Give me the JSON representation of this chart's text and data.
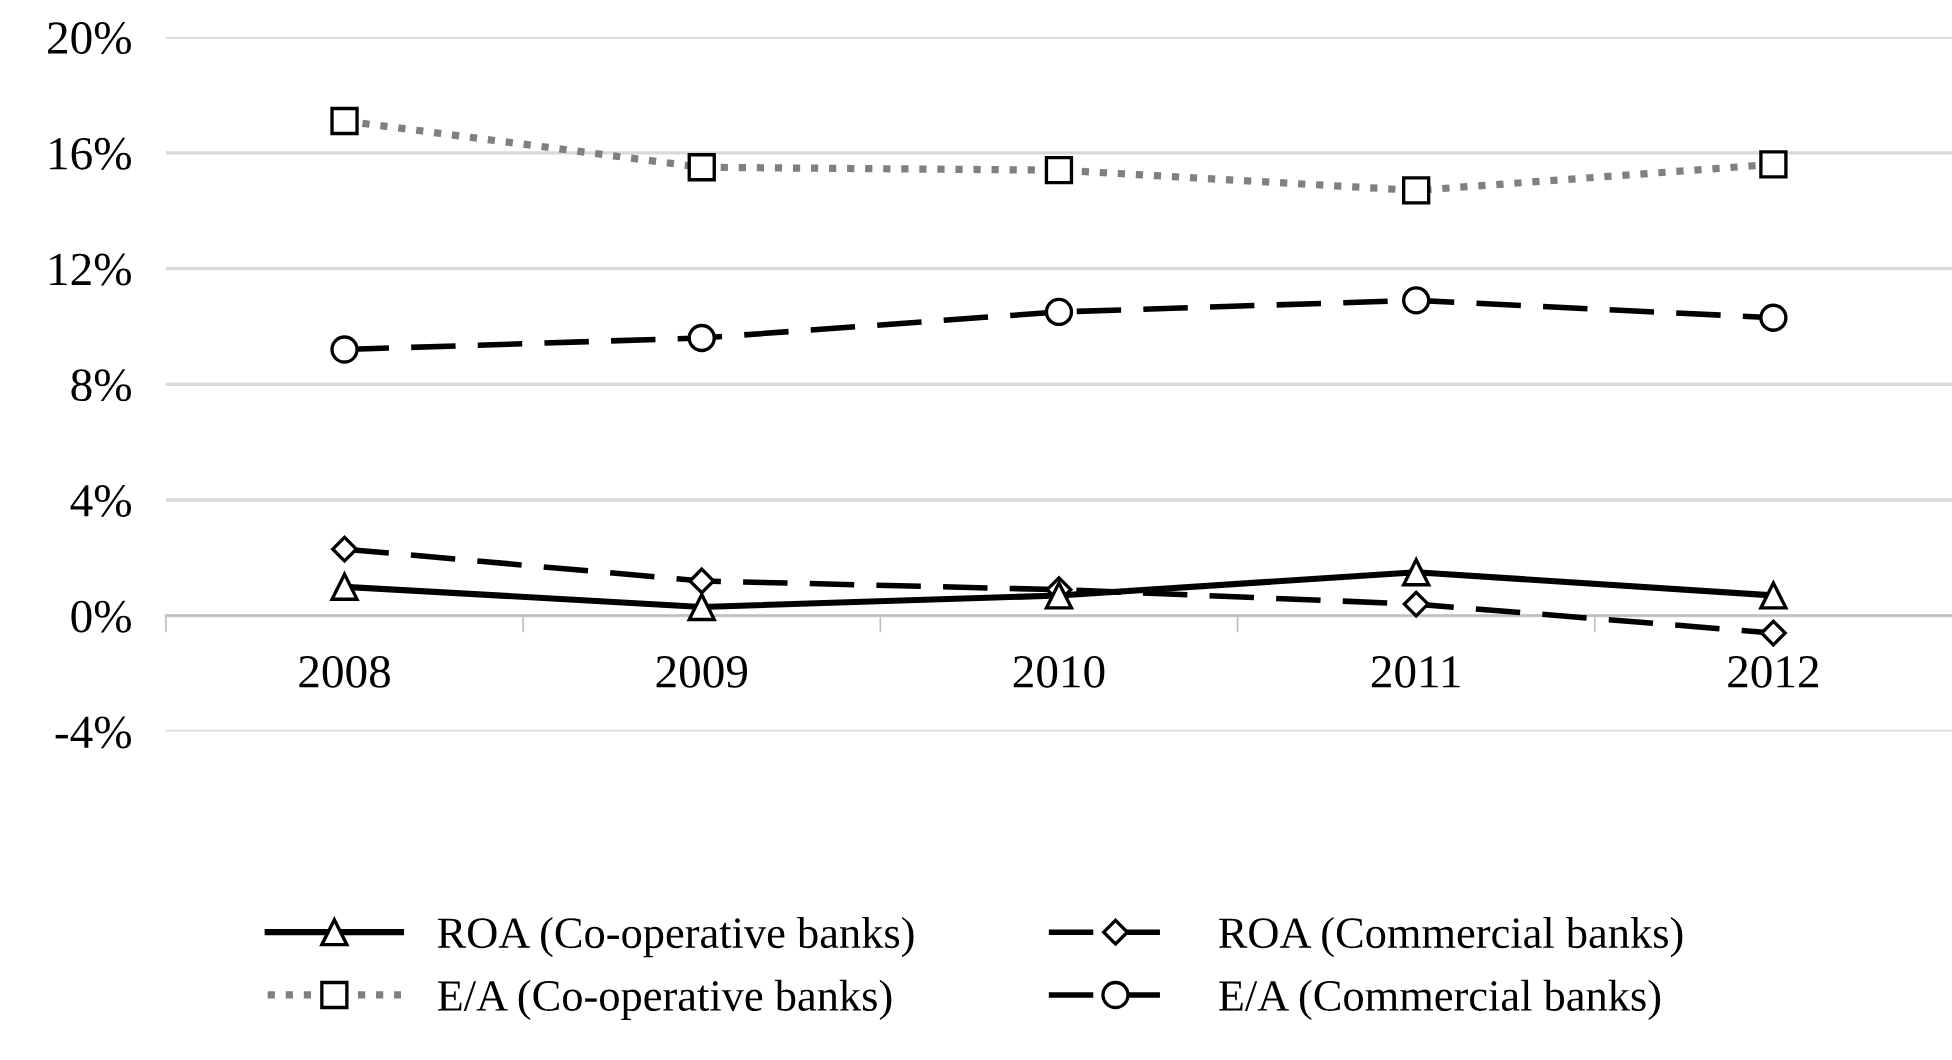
{
  "chart_data": {
    "type": "line",
    "categories": [
      "2008",
      "2009",
      "2010",
      "2011",
      "2012"
    ],
    "series": [
      {
        "name": "ROA (Co-operative banks)",
        "color": "#000000",
        "line_style": "solid",
        "marker": "triangle",
        "values": [
          1.0,
          0.3,
          0.7,
          1.5,
          0.7
        ]
      },
      {
        "name": "E/A (Co-operative banks)",
        "color": "#808080",
        "line_style": "dotted",
        "marker": "square",
        "values": [
          17.1,
          15.5,
          15.4,
          14.7,
          15.6
        ]
      },
      {
        "name": "ROA (Commercial banks)",
        "color": "#000000",
        "line_style": "dashed",
        "marker": "diamond",
        "values": [
          2.3,
          1.2,
          0.9,
          0.4,
          -0.6
        ]
      },
      {
        "name": "E/A (Commercial banks)",
        "color": "#000000",
        "line_style": "dashed",
        "marker": "circle",
        "values": [
          9.2,
          9.6,
          10.5,
          10.9,
          10.3
        ]
      }
    ],
    "ylim": [
      -4,
      20
    ],
    "yticks": [
      {
        "value": -4,
        "label": "-4%"
      },
      {
        "value": 0,
        "label": "0%"
      },
      {
        "value": 4,
        "label": "4%"
      },
      {
        "value": 8,
        "label": "8%"
      },
      {
        "value": 12,
        "label": "12%"
      },
      {
        "value": 16,
        "label": "16%"
      },
      {
        "value": 20,
        "label": "20%"
      }
    ],
    "grid": "y",
    "legend": "bottom"
  }
}
